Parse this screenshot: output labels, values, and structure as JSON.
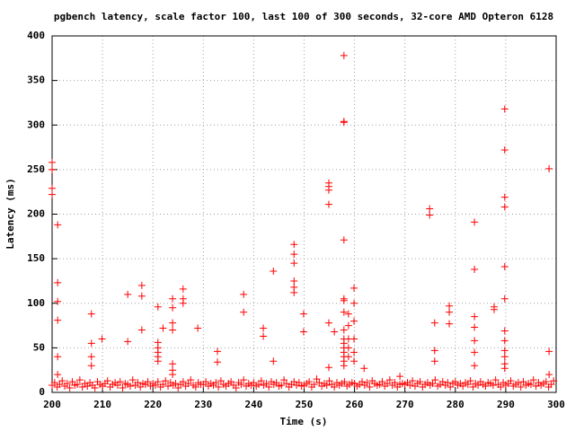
{
  "chart_data": {
    "type": "scatter",
    "title": "pgbench latency, scale factor 100, last 100 of 300 seconds, 32-core AMD Opteron 6128",
    "x_label": "Time (s)",
    "y_label": "Latency (ms)",
    "color": "#ff0000",
    "grid": true,
    "xlim": [
      200,
      300
    ],
    "xticks": [
      200,
      210,
      220,
      230,
      240,
      250,
      260,
      270,
      280,
      290,
      300
    ],
    "ylim": [
      0,
      400
    ],
    "yticks": [
      0,
      50,
      100,
      150,
      200,
      250,
      300,
      350,
      400
    ],
    "x": [
      200,
      200.5,
      201,
      201.5,
      202,
      202.5,
      203,
      203.5,
      204,
      204.5,
      205,
      205.5,
      206,
      206.5,
      207,
      207.5,
      208,
      208.5,
      209,
      209.5,
      210,
      210.5,
      211,
      211.5,
      212,
      212.5,
      213,
      213.5,
      214,
      214.5,
      215,
      215.5,
      216,
      216.5,
      217,
      217.5,
      218,
      218.5,
      219,
      219.5,
      220,
      220.5,
      221,
      221.5,
      222,
      222.5,
      223,
      223.5,
      224,
      224.5,
      225,
      225.5,
      226,
      226.5,
      227,
      227.5,
      228,
      228.5,
      229,
      229.5,
      230,
      230.5,
      231,
      231.5,
      232,
      232.5,
      233,
      233.5,
      234,
      234.5,
      235,
      235.5,
      236,
      236.5,
      237,
      237.5,
      238,
      238.5,
      239,
      239.5,
      240,
      240.5,
      241,
      241.5,
      242,
      242.5,
      243,
      243.5,
      244,
      244.5,
      245,
      245.5,
      246,
      246.5,
      247,
      247.5,
      248,
      248.5,
      249,
      249.5,
      250,
      250.5,
      251,
      251.5,
      252,
      252.5,
      253,
      253.5,
      254,
      254.5,
      255,
      255.5,
      256,
      256.5,
      257,
      257.5,
      258,
      258.5,
      259,
      259.5,
      260,
      260.5,
      261,
      261.5,
      262,
      262.5,
      263,
      263.5,
      264,
      264.5,
      265,
      265.5,
      266,
      266.5,
      267,
      267.5,
      268,
      268.5,
      269,
      269.5,
      270,
      270.5,
      271,
      271.5,
      272,
      272.5,
      273,
      273.5,
      274,
      274.5,
      275,
      275.5,
      276,
      276.5,
      277,
      277.5,
      278,
      278.5,
      279,
      279.5,
      280,
      280.5,
      281,
      281.5,
      282,
      282.5,
      283,
      283.5,
      284,
      284.5,
      285,
      285.5,
      286,
      286.5,
      287,
      287.5,
      288,
      288.5,
      289,
      289.5,
      290,
      290.5,
      291,
      291.5,
      292,
      292.5,
      293,
      293.5,
      294,
      294.5,
      295,
      295.5,
      296,
      296.5,
      297,
      297.5,
      298,
      298.5,
      299,
      299.5,
      200,
      200,
      200,
      200,
      201.1,
      201.1,
      201.1,
      201.1,
      201.1,
      201.1,
      207.8,
      207.8,
      207.8,
      207.8,
      209.9,
      215,
      215,
      217.8,
      217.8,
      217.8,
      221,
      221,
      221,
      221,
      221,
      221,
      222,
      223.9,
      223.9,
      223.9,
      223.9,
      223.9,
      223.9,
      223.9,
      226,
      226,
      226,
      228.9,
      232.8,
      232.8,
      238,
      238,
      241.9,
      241.9,
      243.9,
      243.9,
      248,
      248,
      248,
      248,
      248,
      248,
      249.9,
      249.9,
      254.9,
      254.9,
      254.9,
      254.9,
      254.9,
      254.9,
      256,
      257.9,
      257.9,
      257.9,
      257.9,
      257.9,
      257.9,
      257.9,
      257.9,
      257.9,
      257.9,
      257.9,
      257.9,
      257.9,
      257.9,
      257.9,
      258.8,
      258.8,
      258.8,
      258.8,
      258.8,
      259.9,
      259.9,
      259.9,
      259.9,
      259.9,
      259.9,
      261.9,
      269,
      274.9,
      274.9,
      275.9,
      275.9,
      275.9,
      278.8,
      278.8,
      278.8,
      283.8,
      283.8,
      283.8,
      283.8,
      283.8,
      283.8,
      283.8,
      287.7,
      287.7,
      289.8,
      289.8,
      289.8,
      289.8,
      289.8,
      289.8,
      289.8,
      289.8,
      289.8,
      289.8,
      289.8,
      289.8,
      298.6,
      298.6,
      298.6
    ],
    "values": [
      8,
      11,
      6,
      9,
      13,
      7,
      10,
      5,
      12,
      8,
      9,
      14,
      6,
      10,
      7,
      11,
      8,
      5,
      12,
      9,
      7,
      10,
      13,
      6,
      9,
      11,
      8,
      12,
      5,
      10,
      9,
      7,
      14,
      8,
      11,
      6,
      10,
      9,
      12,
      7,
      10,
      8,
      12,
      6,
      9,
      13,
      7,
      11,
      8,
      10,
      5,
      9,
      12,
      7,
      10,
      14,
      8,
      6,
      11,
      9,
      9,
      12,
      7,
      10,
      8,
      11,
      6,
      13,
      9,
      7,
      10,
      12,
      8,
      5,
      11,
      9,
      14,
      7,
      10,
      8,
      11,
      7,
      9,
      13,
      8,
      10,
      6,
      12,
      9,
      11,
      7,
      8,
      14,
      10,
      6,
      9,
      12,
      8,
      11,
      7,
      8,
      10,
      12,
      6,
      9,
      15,
      11,
      7,
      10,
      8,
      13,
      9,
      6,
      11,
      8,
      10,
      12,
      7,
      9,
      11,
      10,
      7,
      9,
      12,
      8,
      11,
      6,
      13,
      10,
      8,
      9,
      12,
      7,
      10,
      14,
      8,
      11,
      6,
      9,
      10,
      9,
      11,
      8,
      13,
      7,
      10,
      12,
      6,
      9,
      11,
      8,
      10,
      14,
      7,
      9,
      12,
      8,
      11,
      6,
      10,
      12,
      8,
      10,
      7,
      11,
      9,
      13,
      6,
      10,
      8,
      12,
      9,
      7,
      11,
      10,
      8,
      14,
      9,
      6,
      11,
      8,
      10,
      13,
      7,
      9,
      11,
      6,
      12,
      8,
      10,
      9,
      14,
      7,
      11,
      8,
      10,
      12,
      6,
      9,
      13,
      258,
      250,
      229,
      222,
      188,
      123,
      102,
      81,
      40,
      20,
      88,
      55,
      40,
      30,
      60,
      110,
      57,
      120,
      108,
      70,
      96,
      56,
      50,
      45,
      40,
      35,
      72,
      105,
      95,
      78,
      70,
      32,
      25,
      20,
      116,
      105,
      100,
      72,
      46,
      34,
      110,
      90,
      72,
      63,
      136,
      35,
      166,
      155,
      145,
      125,
      118,
      112,
      88,
      68,
      235,
      231,
      227,
      211,
      78,
      28,
      68,
      378,
      304,
      303,
      171,
      105,
      103,
      90,
      70,
      60,
      55,
      50,
      45,
      40,
      35,
      30,
      88,
      75,
      60,
      50,
      40,
      117,
      100,
      80,
      60,
      45,
      35,
      27,
      18,
      206,
      199,
      78,
      47,
      35,
      97,
      90,
      77,
      191,
      138,
      85,
      73,
      58,
      45,
      30,
      96,
      93,
      318,
      272,
      219,
      208,
      141,
      105,
      69,
      58,
      47,
      40,
      32,
      27,
      251,
      46,
      20
    ]
  }
}
